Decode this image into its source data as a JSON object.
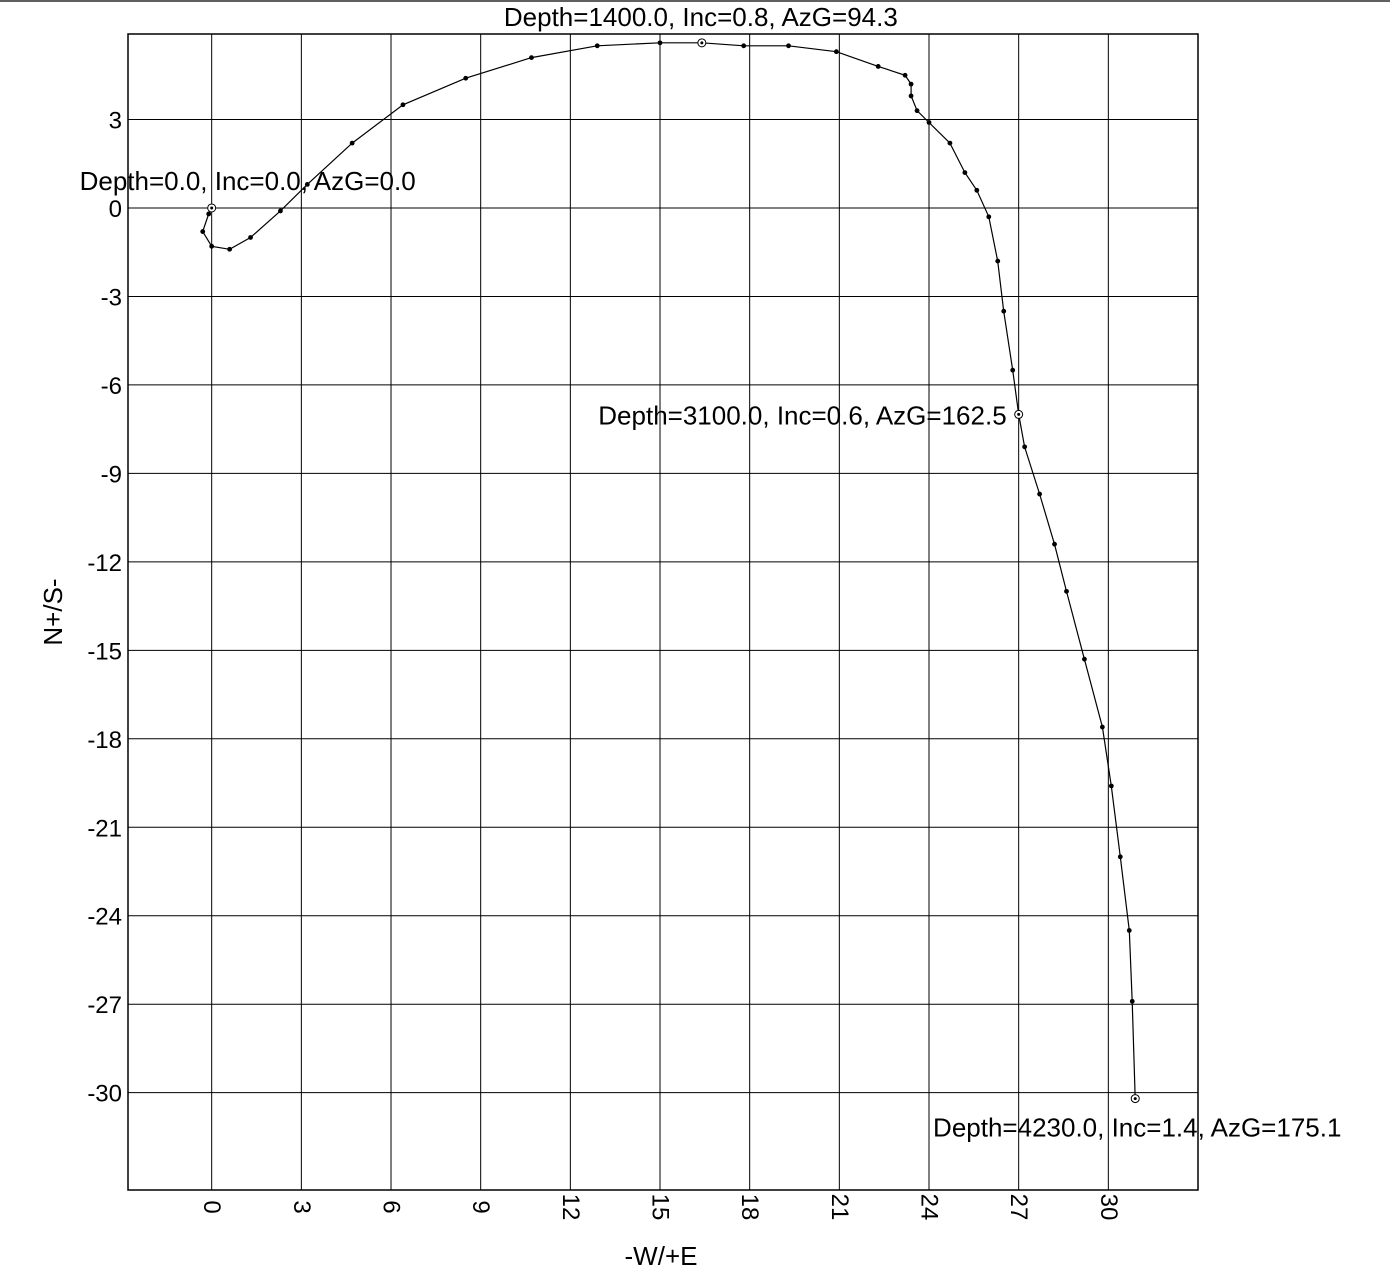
{
  "chart_data": {
    "type": "line",
    "title": "",
    "xlabel": "-W/+E",
    "ylabel": "N+/S-",
    "xlim": [
      -2.8,
      33
    ],
    "ylim": [
      -33.3,
      5.9
    ],
    "grid": true,
    "x_ticks": [
      0,
      3,
      6,
      9,
      12,
      15,
      18,
      21,
      24,
      27,
      30
    ],
    "y_ticks": [
      3,
      0,
      -3,
      -6,
      -9,
      -12,
      -15,
      -18,
      -21,
      -24,
      -27,
      -30
    ],
    "x_tick_labels": [
      "0",
      "3",
      "6",
      "9",
      "12",
      "15",
      "18",
      "21",
      "24",
      "27",
      "30"
    ],
    "y_tick_labels": [
      "3",
      "0",
      "-3",
      "-6",
      "-9",
      "-12",
      "-15",
      "-18",
      "-21",
      "-24",
      "-27",
      "-30"
    ],
    "series": [
      {
        "x": [
          0,
          -0.1,
          -0.3,
          0,
          0.6,
          1.3,
          2.3,
          3.2,
          4.7,
          6.4,
          8.5,
          10.7,
          12.9,
          15.0,
          16.4,
          17.8,
          19.3,
          20.9,
          22.3,
          23.2,
          23.4,
          23.4,
          23.6,
          24.0,
          24.7,
          25.2,
          25.6,
          26.0,
          26.3,
          26.5,
          26.8,
          27.0,
          27.2,
          27.7,
          28.2,
          28.6,
          29.2,
          29.8,
          30.1,
          30.4,
          30.7,
          30.8,
          30.9
        ],
        "y": [
          0,
          -0.2,
          -0.8,
          -1.3,
          -1.4,
          -1.0,
          -0.1,
          0.8,
          2.2,
          3.5,
          4.4,
          5.1,
          5.5,
          5.6,
          5.6,
          5.5,
          5.5,
          5.3,
          4.8,
          4.5,
          4.2,
          3.8,
          3.3,
          2.9,
          2.2,
          1.2,
          0.6,
          -0.3,
          -1.8,
          -3.5,
          -5.5,
          -7.0,
          -8.1,
          -9.7,
          -11.4,
          -13.0,
          -15.3,
          -17.6,
          -19.6,
          -22.0,
          -24.5,
          -26.9,
          -30.2
        ]
      }
    ],
    "annotations": [
      {
        "text": "Depth=0.0, Inc=0.0, AzG=0.0",
        "x": 0,
        "y": 0
      },
      {
        "text": "Depth=1400.0, Inc=0.8, AzG=94.3",
        "x": 16.4,
        "y": 5.6
      },
      {
        "text": "Depth=3100.0, Inc=0.6, AzG=162.5",
        "x": 27.0,
        "y": -7.0
      },
      {
        "text": "Depth=4230.0, Inc=1.4, AzG=175.1",
        "x": 30.9,
        "y": -30.2
      }
    ]
  }
}
